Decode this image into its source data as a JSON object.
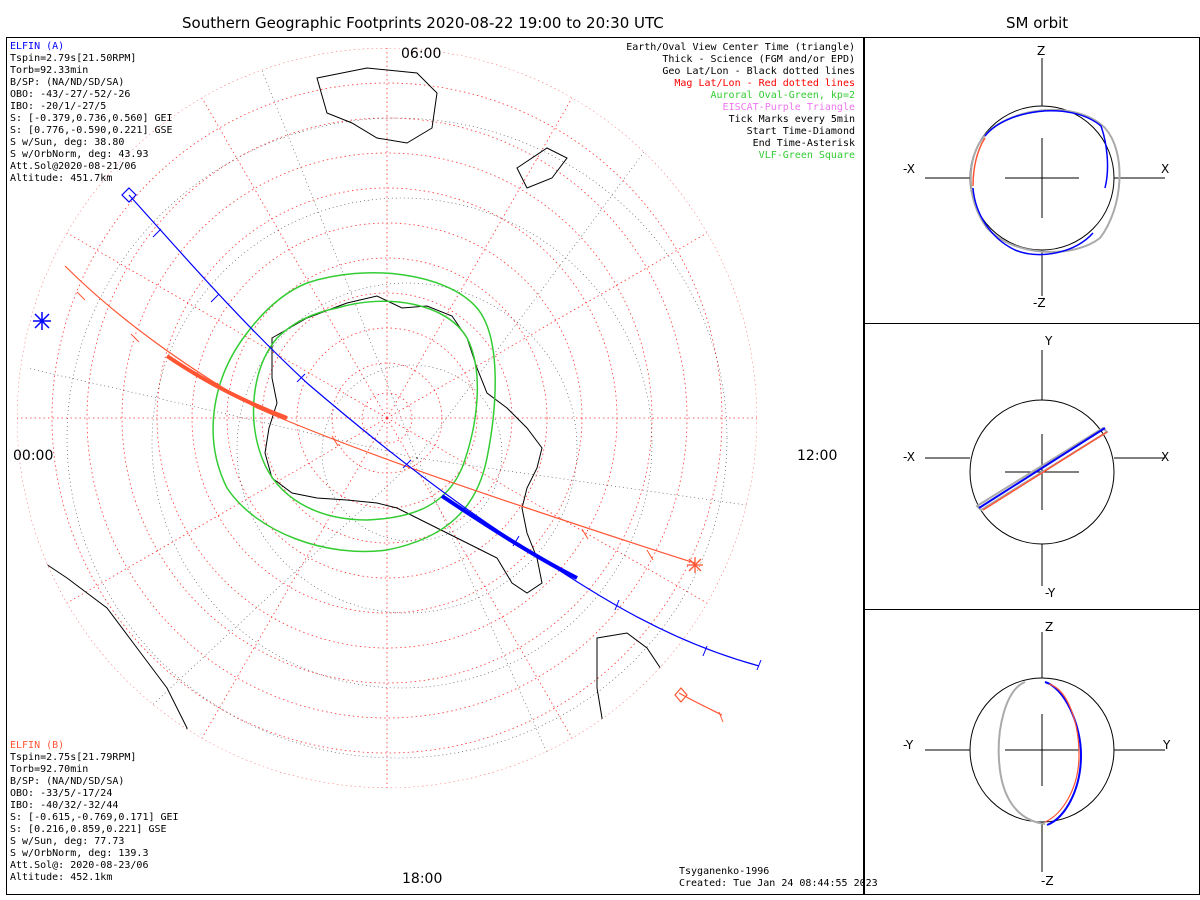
{
  "header": {
    "main_title": "Southern Geographic Footprints 2020-08-22 19:00 to 20:30 UTC",
    "side_title": "SM orbit"
  },
  "elfin_a": {
    "name": "ELFIN (A)",
    "lines": [
      "Tspin=2.79s[21.50RPM]",
      "Torb=92.33min",
      "B/SP: (NA/ND/SD/SA)",
      "OBO: -43/-27/-52/-26",
      "IBO: -20/1/-27/5",
      "S: [-0.379,0.736,0.560] GEI",
      "S: [0.776,-0.590,0.221] GSE",
      "S w/Sun, deg: 38.80",
      "S w/OrbNorm, deg: 43.93",
      "Att.Sol@2020-08-21/06",
      "Altitude: 451.7km"
    ]
  },
  "elfin_b": {
    "name": "ELFIN (B)",
    "lines": [
      "Tspin=2.75s[21.79RPM]",
      "Torb=92.70min",
      "B/SP: (NA/ND/SD/SA)",
      "OBO: -33/5/-17/24",
      "IBO: -40/32/-32/44",
      "S: [-0.615,-0.769,0.171] GEI",
      "S: [0.216,0.859,0.221] GSE",
      "S w/Sun, deg: 77.73",
      "S w/OrbNorm, deg: 139.3",
      "Att.Sol@: 2020-08-23/06",
      "Altitude: 452.1km"
    ]
  },
  "legend": [
    {
      "text": "Earth/Oval View Center Time (triangle)",
      "color": "#000000"
    },
    {
      "text": "Thick - Science (FGM and/or EPD)",
      "color": "#000000"
    },
    {
      "text": "Geo Lat/Lon - Black dotted lines",
      "color": "#000000"
    },
    {
      "text": "Mag Lat/Lon - Red dotted lines",
      "color": "#ff0000"
    },
    {
      "text": "Auroral Oval-Green, kp=2",
      "color": "#33cc33"
    },
    {
      "text": "EISCAT-Purple Triangle",
      "color": "#ee77ee"
    },
    {
      "text": "Tick Marks every 5min",
      "color": "#000000"
    },
    {
      "text": "Start Time-Diamond",
      "color": "#000000"
    },
    {
      "text": "End Time-Asterisk",
      "color": "#000000"
    },
    {
      "text": "VLF-Green Square",
      "color": "#33cc33"
    }
  ],
  "hours": {
    "top": "06:00",
    "left": "00:00",
    "right": "12:00",
    "bottom": "18:00"
  },
  "footer": {
    "model": "Tsyganenko-1996",
    "created": "Created: Tue Jan 24 08:44:55 2023"
  },
  "sm_panels": [
    {
      "top": "Z",
      "bottom": "-Z",
      "left": "-X",
      "right": "X"
    },
    {
      "top": "Y",
      "bottom": "-Y",
      "left": "-X",
      "right": "X"
    },
    {
      "top": "Z",
      "bottom": "-Z",
      "left": "-Y",
      "right": "Y"
    }
  ],
  "colors": {
    "elfin_a": "#0000ff",
    "elfin_b": "#ff5533",
    "mag_grid": "#ff0000",
    "oval": "#33cc33",
    "sm_gray": "#aaaaaa"
  }
}
